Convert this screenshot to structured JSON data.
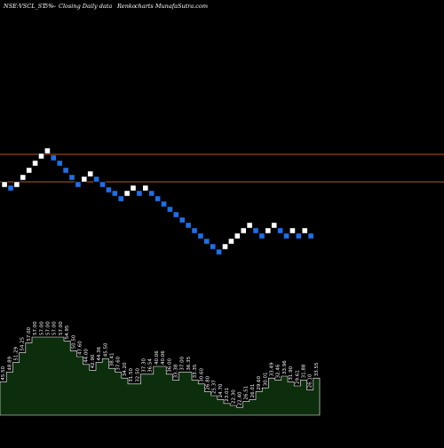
{
  "header": {
    "symbol": "NSE:VSCL_ST",
    "pct": "5%",
    "arrow": "~",
    "desc_1": "Closing Daily data",
    "desc_2": "Renko",
    "desc_3": "charts MunafaSutra.com"
  },
  "colors": {
    "background": "#000000",
    "brick_up": "#ffffff",
    "brick_down": "#1e6fe8",
    "reference_line": "#b05a1e",
    "volume_fill": "#0d2e0d",
    "volume_line": "#ffffff"
  },
  "chart_data": [
    {
      "type": "renko",
      "title": "",
      "reference_lines": [
        174,
        205
      ],
      "bricks": [
        {
          "y": 208,
          "dir": "up"
        },
        {
          "y": 212,
          "dir": "down"
        },
        {
          "y": 208,
          "dir": "up"
        },
        {
          "y": 200,
          "dir": "up"
        },
        {
          "y": 192,
          "dir": "up"
        },
        {
          "y": 184,
          "dir": "up"
        },
        {
          "y": 176,
          "dir": "up"
        },
        {
          "y": 170,
          "dir": "up"
        },
        {
          "y": 178,
          "dir": "down"
        },
        {
          "y": 184,
          "dir": "down"
        },
        {
          "y": 192,
          "dir": "down"
        },
        {
          "y": 200,
          "dir": "down"
        },
        {
          "y": 208,
          "dir": "down"
        },
        {
          "y": 202,
          "dir": "up"
        },
        {
          "y": 196,
          "dir": "up"
        },
        {
          "y": 202,
          "dir": "down"
        },
        {
          "y": 208,
          "dir": "down"
        },
        {
          "y": 214,
          "dir": "down"
        },
        {
          "y": 218,
          "dir": "down"
        },
        {
          "y": 224,
          "dir": "down"
        },
        {
          "y": 218,
          "dir": "up"
        },
        {
          "y": 212,
          "dir": "up"
        },
        {
          "y": 218,
          "dir": "down"
        },
        {
          "y": 212,
          "dir": "up"
        },
        {
          "y": 218,
          "dir": "down"
        },
        {
          "y": 224,
          "dir": "down"
        },
        {
          "y": 230,
          "dir": "down"
        },
        {
          "y": 236,
          "dir": "down"
        },
        {
          "y": 242,
          "dir": "down"
        },
        {
          "y": 248,
          "dir": "down"
        },
        {
          "y": 254,
          "dir": "down"
        },
        {
          "y": 260,
          "dir": "down"
        },
        {
          "y": 266,
          "dir": "down"
        },
        {
          "y": 272,
          "dir": "down"
        },
        {
          "y": 278,
          "dir": "down"
        },
        {
          "y": 284,
          "dir": "down"
        },
        {
          "y": 278,
          "dir": "up"
        },
        {
          "y": 272,
          "dir": "up"
        },
        {
          "y": 266,
          "dir": "up"
        },
        {
          "y": 260,
          "dir": "up"
        },
        {
          "y": 254,
          "dir": "up"
        },
        {
          "y": 260,
          "dir": "down"
        },
        {
          "y": 266,
          "dir": "down"
        },
        {
          "y": 260,
          "dir": "up"
        },
        {
          "y": 254,
          "dir": "up"
        },
        {
          "y": 260,
          "dir": "down"
        },
        {
          "y": 266,
          "dir": "down"
        },
        {
          "y": 260,
          "dir": "up"
        },
        {
          "y": 266,
          "dir": "down"
        },
        {
          "y": 260,
          "dir": "up"
        },
        {
          "y": 266,
          "dir": "down"
        }
      ],
      "volume_labels": [
        "45.50",
        "48.89",
        "51.29",
        "54.25",
        "57.00",
        "57.00",
        "57.00",
        "57.00",
        "57.00",
        "57.00",
        "54.95",
        "50.50",
        "47.60",
        "44.00",
        "42.90",
        "44.36",
        "45.50",
        "38.41",
        "37.60",
        "34.20",
        "31.50",
        "32.50",
        "37.30",
        "36.54",
        "40.06",
        "40.06",
        "36.00",
        "33.38",
        "37.00",
        "36.35",
        "33.35",
        "30.60",
        "26.80",
        "25.37",
        "24.70",
        "23.01",
        "22.30",
        "22.40",
        "26.51",
        "26.01",
        "29.60",
        "30.01",
        "33.49",
        "32.46",
        "33.96",
        "31.90",
        "29.61",
        "31.88",
        "26.10",
        "33.55"
      ],
      "volume_values": [
        17,
        22,
        27,
        32,
        37,
        40,
        40,
        40,
        40,
        40,
        38,
        33,
        30,
        26,
        23,
        27,
        29,
        24,
        22,
        19,
        16,
        16,
        21,
        21,
        25,
        25,
        21,
        18,
        22,
        22,
        18,
        16,
        12,
        10,
        8,
        6,
        5,
        4,
        7,
        8,
        12,
        14,
        19,
        18,
        20,
        17,
        15,
        18,
        13,
        19
      ]
    }
  ]
}
